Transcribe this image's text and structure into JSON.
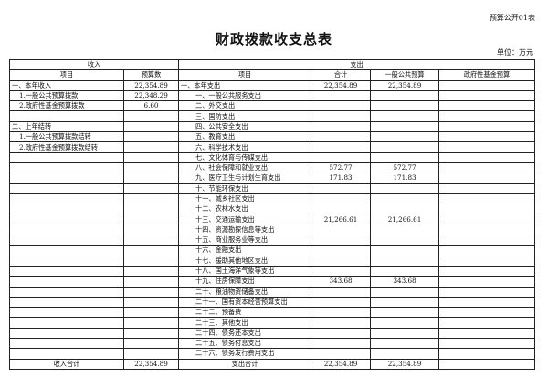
{
  "form_code": "预算公开01表",
  "title": "财政拨款收支总表",
  "unit": "单位：万元",
  "headers": {
    "income": "收入",
    "expense": "支出",
    "item": "项目",
    "budget": "预算数",
    "total": "合计",
    "general": "一般公共预算",
    "fund": "政府性基金预算"
  },
  "rows": [
    [
      "一、本年收入",
      "22,354.89",
      "一、本年支出",
      "22,354.89",
      "22,354.89",
      ""
    ],
    [
      "1.一般公共预算拨款",
      "22,348.29",
      "一、一般公共服务支出",
      "",
      "",
      ""
    ],
    [
      "2.政府性基金预算拨款",
      "6.60",
      "二、外交支出",
      "",
      "",
      ""
    ],
    [
      "",
      "",
      "三、国防支出",
      "",
      "",
      ""
    ],
    [
      "二、上年结转",
      "",
      "四、公共安全支出",
      "",
      "",
      ""
    ],
    [
      "1.一般公共预算拨款结转",
      "",
      "五、教育支出",
      "",
      "",
      ""
    ],
    [
      "2.政府性基金预算拨款结转",
      "",
      "六、科学技术支出",
      "",
      "",
      ""
    ],
    [
      "",
      "",
      "七、文化体育与传媒支出",
      "",
      "",
      ""
    ],
    [
      "",
      "",
      "八、社会保障和就业支出",
      "572.77",
      "572.77",
      ""
    ],
    [
      "",
      "",
      "九、医疗卫生与计划生育支出",
      "171.83",
      "171.83",
      ""
    ],
    [
      "",
      "",
      "十、节能环保支出",
      "",
      "",
      ""
    ],
    [
      "",
      "",
      "十一、城乡社区支出",
      "",
      "",
      ""
    ],
    [
      "",
      "",
      "十二、农林水支出",
      "",
      "",
      ""
    ],
    [
      "",
      "",
      "十三、交通运输支出",
      "21,266.61",
      "21,266.61",
      ""
    ],
    [
      "",
      "",
      "十四、资源勘探信息等支出",
      "",
      "",
      ""
    ],
    [
      "",
      "",
      "十五、商业服务业等支出",
      "",
      "",
      ""
    ],
    [
      "",
      "",
      "十六、金融支出",
      "",
      "",
      ""
    ],
    [
      "",
      "",
      "十七、援助其他地区支出",
      "",
      "",
      ""
    ],
    [
      "",
      "",
      "十八、国土海洋气象等支出",
      "",
      "",
      ""
    ],
    [
      "",
      "",
      "十九、住房保障支出",
      "343.68",
      "343.68",
      ""
    ],
    [
      "",
      "",
      "二十、粮油物资储备支出",
      "",
      "",
      ""
    ],
    [
      "",
      "",
      "二十一、国有资本经营预算支出",
      "",
      "",
      ""
    ],
    [
      "",
      "",
      "二十二、预备费",
      "",
      "",
      ""
    ],
    [
      "",
      "",
      "二十三、其他支出",
      "",
      "",
      ""
    ],
    [
      "",
      "",
      "二十四、债务还本支出",
      "",
      "",
      ""
    ],
    [
      "",
      "",
      "二十五、债务付息支出",
      "",
      "",
      ""
    ],
    [
      "",
      "",
      "二十六、债务发行费用支出",
      "",
      "",
      ""
    ]
  ],
  "totals": {
    "income_label": "收入合计",
    "income": "22,354.89",
    "expense_label": "支出合计",
    "total": "22,354.89",
    "general": "22,354.89",
    "fund": ""
  }
}
